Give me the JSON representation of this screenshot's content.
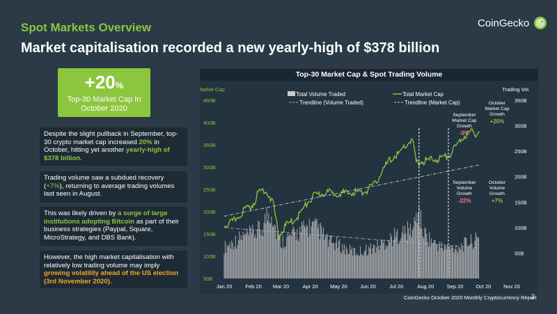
{
  "header": {
    "section_title": "Spot Markets Overview",
    "headline": "Market capitalisation recorded a new yearly-high of $378 billion",
    "brand": "CoinGecko",
    "brand_icon": "gecko-logo-icon",
    "brand_color": "#8cc63f"
  },
  "highlight": {
    "value": "+20",
    "unit": "%",
    "line1": "Top-30 Market Cap In",
    "line2": "October 2020"
  },
  "cards": [
    {
      "parts": [
        {
          "text": "Despite the slight pullback in September, top-30 crypto market cap increased ",
          "style": "plain"
        },
        {
          "text": "20%",
          "style": "green-bold"
        },
        {
          "text": " in October, hitting yet another ",
          "style": "plain"
        },
        {
          "text": "yearly-high of $378 billion.",
          "style": "green-bold"
        }
      ]
    },
    {
      "parts": [
        {
          "text": "Trading volume saw a subdued recovery (",
          "style": "plain"
        },
        {
          "text": "+7%",
          "style": "green"
        },
        {
          "text": "), returning to average trading volumes last seen in August.",
          "style": "plain"
        }
      ]
    },
    {
      "parts": [
        {
          "text": "This was likely driven by ",
          "style": "plain"
        },
        {
          "text": "a surge of large institutions adopting Bitcoin",
          "style": "green-bold"
        },
        {
          "text": " as part of their business strategies (Paypal, Square, MicroStrategy, and DBS Bank).",
          "style": "plain"
        }
      ]
    },
    {
      "parts": [
        {
          "text": "However, the high market capitalisation with relatively low trading volume may imply ",
          "style": "plain"
        },
        {
          "text": "growing volatility ahead of the US election (3rd November 2020).",
          "style": "orange-bold"
        }
      ]
    }
  ],
  "chart_data": {
    "type": "bar+line",
    "title": "Top-30 Market Cap & Spot Trading Volume",
    "ylabel_left": "Market Cap",
    "ylabel_right": "Trading Vol.",
    "left_ticks": [
      "450B",
      "400B",
      "350B",
      "300B",
      "250B",
      "200B",
      "150B",
      "100B",
      "50B"
    ],
    "right_ticks": [
      "350B",
      "300B",
      "250B",
      "200B",
      "150B",
      "100B",
      "50B"
    ],
    "left_ylim": [
      50,
      450
    ],
    "right_ylim": [
      0,
      350
    ],
    "x_ticks": [
      "Jan 20",
      "Feb 20",
      "Mar 20",
      "Apr 20",
      "May 20",
      "Jun 20",
      "Jul 20",
      "Aug 20",
      "Sep 20",
      "Oct 20",
      "Nov 20"
    ],
    "legend": [
      {
        "label": "Total Volume Traded",
        "kind": "bar",
        "color": "#c9c9c9"
      },
      {
        "label": "Total Market Cap",
        "kind": "line",
        "color": "#8cc63f"
      },
      {
        "label": "Trendline (Volume Traded)",
        "kind": "dash",
        "color": "#aab4bc"
      },
      {
        "label": "Trendline (Market Cap)",
        "kind": "dash",
        "color": "#c8d0d6"
      }
    ],
    "market_cap_keypoints": [
      [
        0,
        170
      ],
      [
        8,
        175
      ],
      [
        15,
        190
      ],
      [
        22,
        205
      ],
      [
        30,
        215
      ],
      [
        37,
        245
      ],
      [
        43,
        250
      ],
      [
        48,
        235
      ],
      [
        52,
        215
      ],
      [
        55,
        180
      ],
      [
        58,
        140
      ],
      [
        62,
        160
      ],
      [
        67,
        172
      ],
      [
        72,
        178
      ],
      [
        80,
        195
      ],
      [
        88,
        220
      ],
      [
        95,
        235
      ],
      [
        100,
        238
      ],
      [
        108,
        245
      ],
      [
        115,
        240
      ],
      [
        122,
        243
      ],
      [
        130,
        240
      ],
      [
        138,
        245
      ],
      [
        145,
        242
      ],
      [
        152,
        250
      ],
      [
        160,
        262
      ],
      [
        165,
        285
      ],
      [
        170,
        300
      ],
      [
        175,
        315
      ],
      [
        180,
        325
      ],
      [
        185,
        330
      ],
      [
        190,
        345
      ],
      [
        195,
        355
      ],
      [
        199,
        360
      ],
      [
        201,
        335
      ],
      [
        203,
        310
      ],
      [
        208,
        312
      ],
      [
        215,
        315
      ],
      [
        222,
        318
      ],
      [
        230,
        320
      ],
      [
        236,
        325
      ],
      [
        240,
        332
      ],
      [
        245,
        345
      ],
      [
        250,
        362
      ],
      [
        255,
        372
      ],
      [
        260,
        378
      ],
      [
        266,
        376
      ],
      [
        270,
        380
      ]
    ],
    "volume_keypoints": [
      [
        0,
        60
      ],
      [
        10,
        70
      ],
      [
        20,
        80
      ],
      [
        30,
        85
      ],
      [
        40,
        95
      ],
      [
        45,
        120
      ],
      [
        50,
        130
      ],
      [
        55,
        90
      ],
      [
        60,
        70
      ],
      [
        70,
        80
      ],
      [
        80,
        90
      ],
      [
        90,
        100
      ],
      [
        100,
        95
      ],
      [
        110,
        70
      ],
      [
        120,
        65
      ],
      [
        130,
        55
      ],
      [
        140,
        50
      ],
      [
        150,
        55
      ],
      [
        160,
        60
      ],
      [
        170,
        70
      ],
      [
        180,
        80
      ],
      [
        190,
        88
      ],
      [
        200,
        95
      ],
      [
        205,
        135
      ],
      [
        210,
        90
      ],
      [
        220,
        70
      ],
      [
        230,
        60
      ],
      [
        240,
        58
      ],
      [
        250,
        62
      ],
      [
        260,
        70
      ],
      [
        270,
        75
      ]
    ],
    "market_cap_trendline": [
      [
        0,
        190
      ],
      [
        270,
        305
      ]
    ],
    "volume_trendline": [
      [
        0,
        100
      ],
      [
        270,
        60
      ]
    ],
    "annotations": [
      {
        "lines": [
          "September",
          "Market Cap",
          "Growth"
        ],
        "value": "-9%",
        "value_color": "#ff7a7a",
        "day": 210
      },
      {
        "lines": [
          "October",
          "Market Cap",
          "Growth"
        ],
        "value": "+20%",
        "value_color": "#8cc63f",
        "day": 262
      },
      {
        "lines": [
          "September",
          "Volume",
          "Growth"
        ],
        "value": "-22%",
        "value_color": "#ff7a7a",
        "day": 210
      },
      {
        "lines": [
          "October",
          "Volume",
          "Growth"
        ],
        "value": "+7%",
        "value_color": "#8cc63f",
        "day": 262
      }
    ],
    "divider_days": [
      206,
      237
    ]
  },
  "footer": {
    "source": "CoinGecko October 2020 Monthly Cryptocurrency Report",
    "page_number": "2"
  }
}
